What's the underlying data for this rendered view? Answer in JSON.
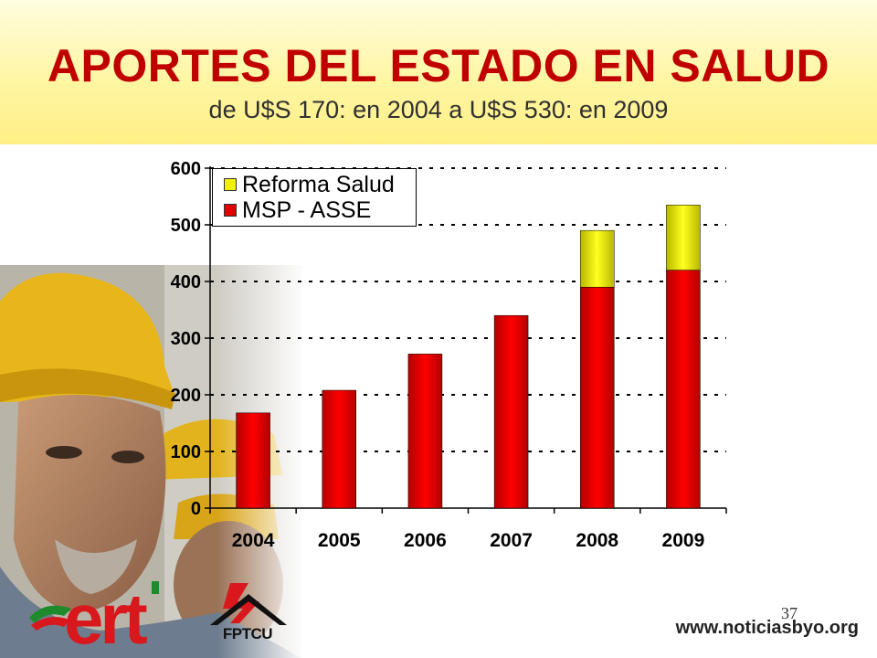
{
  "slide": {
    "page_number": "37",
    "website": "www.noticiasbyo.org",
    "logo_ert_text": "ert",
    "logo_fptcu_text": "FPTCU"
  },
  "colors": {
    "title": "#c00000",
    "msp": "#e00000",
    "reforma": "#f0f000",
    "band": "#fff6a4"
  },
  "chart_data": {
    "type": "bar",
    "stacked": true,
    "title": "APORTES DEL ESTADO EN SALUD",
    "subtitle": "de U$S 170: en 2004 a U$S 530:  en 2009",
    "xlabel": "",
    "ylabel": "",
    "categories": [
      "2004",
      "2005",
      "2006",
      "2007",
      "2008",
      "2009"
    ],
    "series": [
      {
        "name": "MSP - ASSE",
        "color": "#e00000",
        "values": [
          168,
          208,
          272,
          340,
          390,
          420
        ]
      },
      {
        "name": "Reforma Salud",
        "color": "#f0f000",
        "values": [
          0,
          0,
          0,
          0,
          100,
          115
        ]
      }
    ],
    "ylim": [
      0,
      600
    ],
    "yticks": [
      0,
      100,
      200,
      300,
      400,
      500,
      600
    ],
    "grid": true,
    "legend_position": "top-left"
  }
}
